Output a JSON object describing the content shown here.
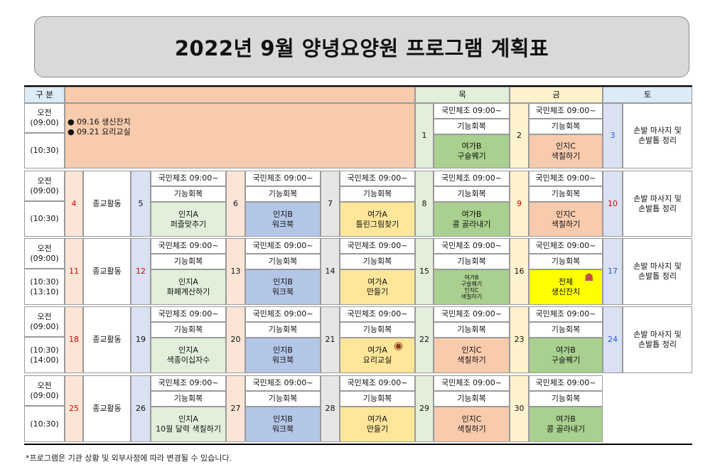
{
  "title": "2022년 9월 양녕요양원 프로그램 계획표",
  "colors": {
    "title_bg": "#d9d9d9",
    "peach": "#f8cbad",
    "light_peach": "#fbe5d6",
    "gray": "#e6e6e6",
    "blue": "#b4c6e7",
    "light_blue": "#d9e1f2",
    "yellow": "#ffe699",
    "light_yellow": "#fff2cc",
    "green": "#a9d08e",
    "light_green": "#e2efda",
    "sky": "#ddebf7",
    "bright_yellow": "#ffff00",
    "weekend_red": "#e00000",
    "saturday_blue": "#1f5fd6"
  },
  "header": {
    "gubun": "구 분",
    "days": [
      "목",
      "금",
      "토"
    ]
  },
  "notes": [
    "09.16 생신잔치",
    "09.21 요리교실"
  ],
  "bullet": "●",
  "time_labels": {
    "am": "오전\n(09:00)",
    "t1030": "(10:30)",
    "t1030_1310": "(10:30)\n(13:10)",
    "t1030_1400": "(10:30)\n(14:00)"
  },
  "common": {
    "exercise": "국민체조 09:00~",
    "function": "기능회복",
    "religion": "종교활동",
    "saturday": "손발 마사지 및\n손발톱 정리"
  },
  "weeks": [
    {
      "dates": [
        "",
        "",
        "",
        "",
        "1",
        "2",
        "3"
      ],
      "activities": [
        "",
        "",
        "",
        "여가B\n구슬꿰기",
        "인지C\n색칠하기"
      ]
    },
    {
      "dates": [
        "4",
        "5",
        "6",
        "7",
        "8",
        "9",
        "10"
      ],
      "activities": [
        "인지A\n퍼즐맞추기",
        "인지B\n워크북",
        "여가A\n틀린그림찾기",
        "여가B\n콩 골라내기",
        "인지C\n색칠하기"
      ]
    },
    {
      "dates": [
        "11",
        "12",
        "13",
        "14",
        "15",
        "16",
        "17"
      ],
      "activities": [
        "인지A\n화폐계산하기",
        "인지B\n워크북",
        "여가A\n만들기",
        "여가B\n구슬꿰기\n인지C\n색칠하기",
        "전체\n생신잔치"
      ]
    },
    {
      "dates": [
        "18",
        "19",
        "20",
        "21",
        "22",
        "23",
        "24"
      ],
      "activities": [
        "인지A\n색종이십자수",
        "인지B\n워크북",
        "여가A\n요리교실",
        "인지C\n색칠하기",
        "여가B\n구슬꿰기"
      ]
    },
    {
      "dates": [
        "25",
        "26",
        "27",
        "28",
        "29",
        "30",
        ""
      ],
      "activities": [
        "인지A\n10월 달력 색칠하기",
        "인지B\n워크북",
        "여가A\n만들기",
        "인지C\n색칠하기",
        "여가B\n콩 골라내기"
      ]
    }
  ],
  "icons": {
    "birthday_cake": "cake-icon",
    "cooking": "food-plate-icon"
  },
  "footnote": "*프로그램은 기관 상황 및 외부사정에 따라 변경될 수 있습니다."
}
